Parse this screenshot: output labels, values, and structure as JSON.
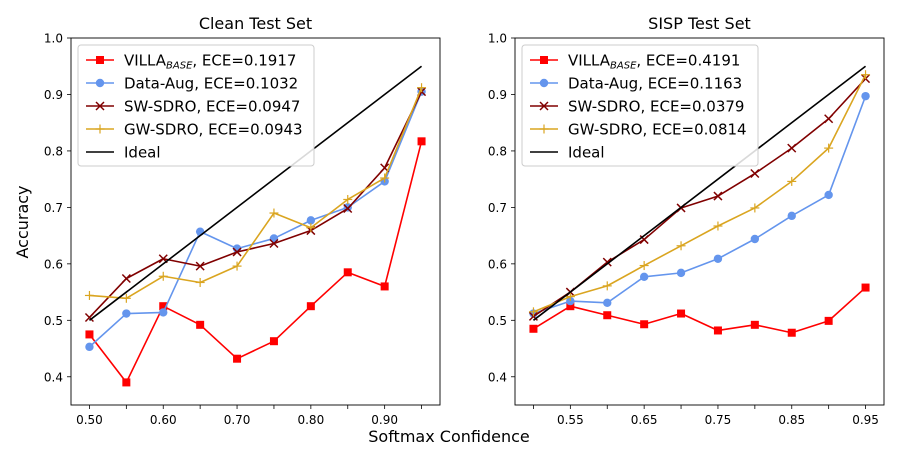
{
  "figure": {
    "xlabel": "Softmax Confidence",
    "ylabel": "Accuracy"
  },
  "chart_data": [
    {
      "type": "line",
      "title": "Clean Test Set",
      "xlim": [
        0.475,
        0.975
      ],
      "ylim": [
        0.35,
        1.0
      ],
      "xticks": [
        0.5,
        0.55,
        0.6,
        0.65,
        0.7,
        0.75,
        0.8,
        0.85,
        0.9,
        0.95
      ],
      "xtick_labels": [
        "0.50",
        "",
        "0.60",
        "",
        "0.70",
        "",
        "0.80",
        "",
        "0.90",
        ""
      ],
      "yticks": [
        0.4,
        0.5,
        0.6,
        0.7,
        0.8,
        0.9,
        1.0
      ],
      "ytick_labels": [
        "0.4",
        "0.5",
        "0.6",
        "0.7",
        "0.8",
        "0.9",
        "1.0"
      ],
      "legend": "top-left",
      "series": [
        {
          "name": "VILLA",
          "sub": "BASE",
          "ece": ", ECE=0.1917",
          "color": "#ff0000",
          "marker": "square",
          "x": [
            0.5,
            0.55,
            0.6,
            0.65,
            0.7,
            0.75,
            0.8,
            0.85,
            0.9,
            0.95
          ],
          "y": [
            0.475,
            0.39,
            0.525,
            0.492,
            0.432,
            0.463,
            0.525,
            0.585,
            0.56,
            0.817
          ]
        },
        {
          "name": "Data-Aug, ECE=0.1032",
          "color": "#6495ed",
          "marker": "circle",
          "x": [
            0.5,
            0.55,
            0.6,
            0.65,
            0.7,
            0.75,
            0.8,
            0.85,
            0.9,
            0.95
          ],
          "y": [
            0.453,
            0.512,
            0.514,
            0.657,
            0.627,
            0.645,
            0.677,
            0.7,
            0.746,
            0.905
          ]
        },
        {
          "name": "SW-SDRO, ECE=0.0947",
          "color": "#800000",
          "marker": "x",
          "x": [
            0.5,
            0.55,
            0.6,
            0.65,
            0.7,
            0.75,
            0.8,
            0.85,
            0.9,
            0.95
          ],
          "y": [
            0.505,
            0.574,
            0.609,
            0.596,
            0.621,
            0.636,
            0.659,
            0.698,
            0.77,
            0.905
          ]
        },
        {
          "name": "GW-SDRO, ECE=0.0943",
          "color": "#daa520",
          "marker": "plus",
          "x": [
            0.5,
            0.55,
            0.6,
            0.65,
            0.7,
            0.75,
            0.8,
            0.85,
            0.9,
            0.95
          ],
          "y": [
            0.544,
            0.539,
            0.578,
            0.567,
            0.596,
            0.69,
            0.664,
            0.714,
            0.752,
            0.912
          ]
        },
        {
          "name": "Ideal",
          "color": "#000000",
          "marker": "none",
          "x": [
            0.5,
            0.95
          ],
          "y": [
            0.5,
            0.95
          ]
        }
      ]
    },
    {
      "type": "line",
      "title": "SISP Test Set",
      "xlim": [
        0.475,
        0.975
      ],
      "ylim": [
        0.35,
        1.0
      ],
      "xticks": [
        0.5,
        0.55,
        0.6,
        0.65,
        0.7,
        0.75,
        0.8,
        0.85,
        0.9,
        0.95
      ],
      "xtick_labels": [
        "",
        "0.55",
        "",
        "0.65",
        "",
        "0.75",
        "",
        "0.85",
        "",
        "0.95"
      ],
      "yticks": [
        0.4,
        0.5,
        0.6,
        0.7,
        0.8,
        0.9,
        1.0
      ],
      "ytick_labels": [
        "0.4",
        "0.5",
        "0.6",
        "0.7",
        "0.8",
        "0.9",
        "1.0"
      ],
      "legend": "top-left",
      "series": [
        {
          "name": "VILLA",
          "sub": "BASE",
          "ece": ", ECE=0.4191",
          "color": "#ff0000",
          "marker": "square",
          "x": [
            0.5,
            0.55,
            0.6,
            0.65,
            0.7,
            0.75,
            0.8,
            0.85,
            0.9,
            0.95
          ],
          "y": [
            0.485,
            0.525,
            0.509,
            0.493,
            0.512,
            0.482,
            0.492,
            0.478,
            0.499,
            0.558
          ]
        },
        {
          "name": "Data-Aug, ECE=0.1163",
          "color": "#6495ed",
          "marker": "circle",
          "x": [
            0.5,
            0.55,
            0.6,
            0.65,
            0.7,
            0.75,
            0.8,
            0.85,
            0.9,
            0.95
          ],
          "y": [
            0.512,
            0.534,
            0.531,
            0.577,
            0.584,
            0.609,
            0.644,
            0.685,
            0.722,
            0.897
          ]
        },
        {
          "name": "SW-SDRO, ECE=0.0379",
          "color": "#800000",
          "marker": "x",
          "x": [
            0.5,
            0.55,
            0.6,
            0.65,
            0.7,
            0.75,
            0.8,
            0.85,
            0.9,
            0.95
          ],
          "y": [
            0.507,
            0.55,
            0.603,
            0.643,
            0.699,
            0.72,
            0.76,
            0.805,
            0.857,
            0.928
          ]
        },
        {
          "name": "GW-SDRO, ECE=0.0814",
          "color": "#daa520",
          "marker": "plus",
          "x": [
            0.5,
            0.55,
            0.6,
            0.65,
            0.7,
            0.75,
            0.8,
            0.85,
            0.9,
            0.95
          ],
          "y": [
            0.515,
            0.542,
            0.561,
            0.597,
            0.632,
            0.667,
            0.699,
            0.746,
            0.805,
            0.935
          ]
        },
        {
          "name": "Ideal",
          "color": "#000000",
          "marker": "none",
          "x": [
            0.5,
            0.95
          ],
          "y": [
            0.5,
            0.95
          ]
        }
      ]
    }
  ]
}
